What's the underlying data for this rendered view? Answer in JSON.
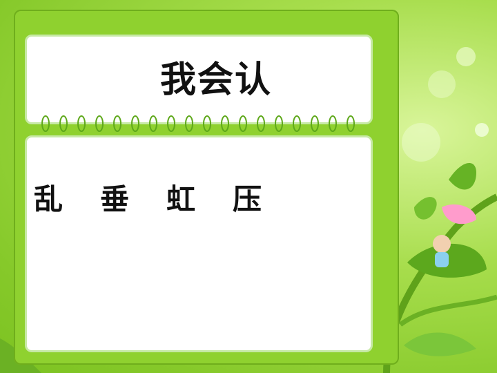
{
  "slide": {
    "title": "我会认",
    "characters": [
      "乱",
      "垂",
      "虹",
      "压"
    ]
  },
  "colors": {
    "frame_green": "#8fd12f",
    "panel_white": "#ffffff",
    "background_green": "#a7dd4c"
  }
}
